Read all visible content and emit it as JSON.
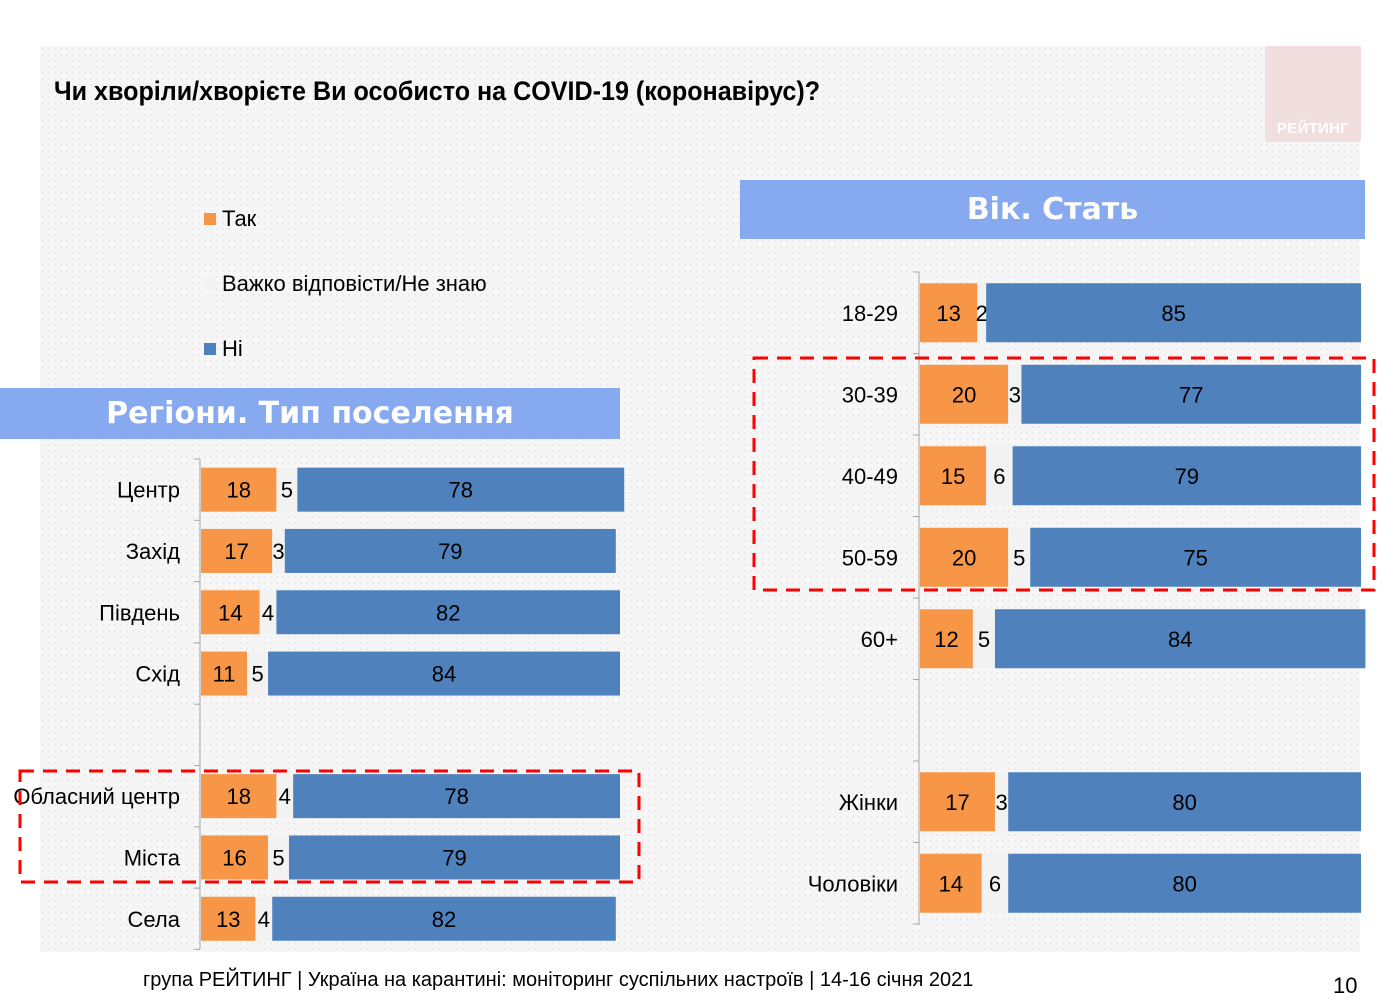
{
  "header": {
    "title": "Чи хворіли/хворієте Ви особисто на COVID-19 (коронавірус)?",
    "logo_text": "РЕЙТИНГ"
  },
  "legend": [
    {
      "label": "Так",
      "color": "#f79646"
    },
    {
      "label": "Важко відповісти/Не знаю",
      "color": "#f2f2f2"
    },
    {
      "label": "Ні",
      "color": "#4f81bd"
    }
  ],
  "sections": {
    "regions_title": "Регіони. Тип поселення",
    "age_sex_title": "Вік. Стать"
  },
  "chart_data": [
    {
      "type": "bar",
      "stacked": true,
      "orientation": "horizontal",
      "title": "Регіони. Тип поселення",
      "categories": [
        "Центр",
        "Захід",
        "Південь",
        "Схід",
        "",
        "Обласний центр",
        "Міста",
        "Села"
      ],
      "series": [
        {
          "name": "Так",
          "color": "#f79646",
          "values": [
            18,
            17,
            14,
            11,
            null,
            18,
            16,
            13
          ]
        },
        {
          "name": "Важко відповісти/Не знаю",
          "color": "#f2f2f2",
          "values": [
            5,
            3,
            4,
            5,
            null,
            4,
            5,
            4
          ]
        },
        {
          "name": "Ні",
          "color": "#4f81bd",
          "values": [
            78,
            79,
            82,
            84,
            null,
            78,
            79,
            82
          ]
        }
      ],
      "highlighted": [
        "Обласний центр",
        "Міста"
      ],
      "xlim": [
        0,
        100
      ]
    },
    {
      "type": "bar",
      "stacked": true,
      "orientation": "horizontal",
      "title": "Вік. Стать",
      "categories": [
        "18-29",
        "30-39",
        "40-49",
        "50-59",
        "60+",
        "",
        "Жінки",
        "Чоловіки"
      ],
      "series": [
        {
          "name": "Так",
          "color": "#f79646",
          "values": [
            13,
            20,
            15,
            20,
            12,
            null,
            17,
            14
          ]
        },
        {
          "name": "Важко відповісти/Не знаю",
          "color": "#f2f2f2",
          "values": [
            2,
            3,
            6,
            5,
            5,
            null,
            3,
            6
          ]
        },
        {
          "name": "Ні",
          "color": "#4f81bd",
          "values": [
            85,
            77,
            79,
            75,
            84,
            null,
            80,
            80
          ]
        }
      ],
      "highlighted": [
        "30-39",
        "40-49",
        "50-59"
      ],
      "xlim": [
        0,
        100
      ]
    }
  ],
  "footer": {
    "text": "група РЕЙТИНГ | Україна на карантині: моніторинг суспільних настроїв | 14-16 січня 2021",
    "page_number": "10"
  }
}
